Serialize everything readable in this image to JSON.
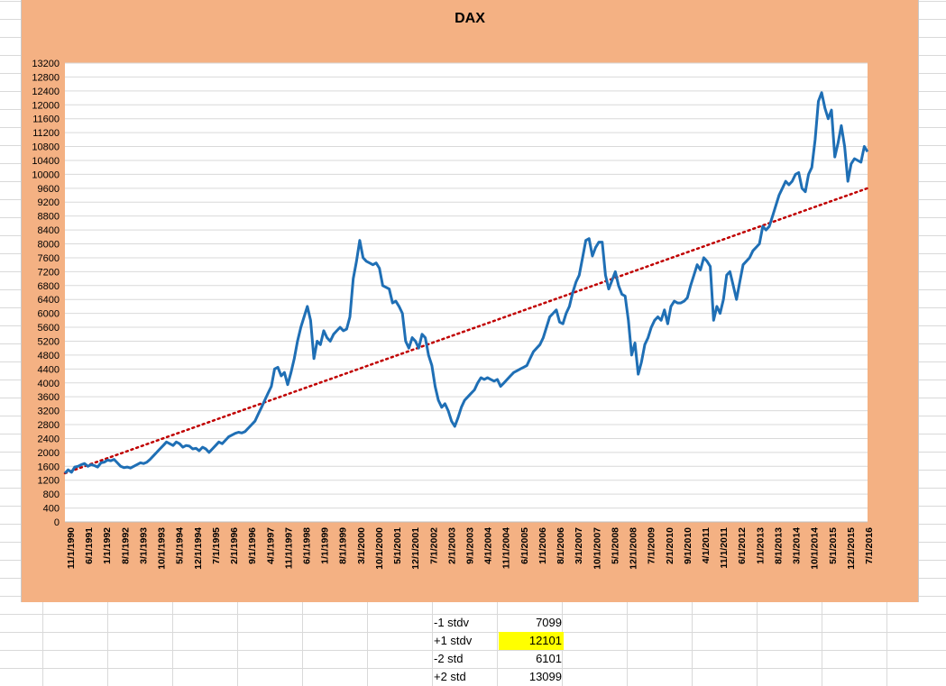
{
  "chart_data": {
    "type": "line",
    "title": "DAX",
    "ylim": [
      0,
      13200
    ],
    "y_ticks": [
      0,
      400,
      800,
      1200,
      1600,
      2000,
      2400,
      2800,
      3200,
      3600,
      4000,
      4400,
      4800,
      5200,
      5600,
      6000,
      6400,
      6800,
      7200,
      7600,
      8000,
      8400,
      8800,
      9200,
      9600,
      10000,
      10400,
      10800,
      11200,
      11600,
      12000,
      12400,
      12800,
      13200
    ],
    "x_tick_labels": [
      "11/1/1990",
      "6/1/1991",
      "1/1/1992",
      "8/1/1992",
      "3/1/1993",
      "10/1/1993",
      "5/1/1994",
      "12/1/1994",
      "7/1/1995",
      "2/1/1996",
      "9/1/1996",
      "4/1/1997",
      "11/1/1997",
      "6/1/1998",
      "1/1/1999",
      "8/1/1999",
      "3/1/2000",
      "10/1/2000",
      "5/1/2001",
      "12/1/2001",
      "7/1/2002",
      "2/1/2003",
      "9/1/2003",
      "4/1/2004",
      "11/1/2004",
      "6/1/2005",
      "1/1/2006",
      "8/1/2006",
      "3/1/2007",
      "10/1/2007",
      "5/1/2008",
      "12/1/2008",
      "7/1/2009",
      "2/1/2010",
      "9/1/2010",
      "4/1/2011",
      "11/1/2011",
      "6/1/2012",
      "1/1/2013",
      "8/1/2013",
      "3/1/2014",
      "10/1/2014",
      "5/1/2015",
      "12/1/2015",
      "7/1/2016"
    ],
    "series": [
      {
        "color": "#1f6fb5",
        "points": [
          [
            0,
            1400
          ],
          [
            1,
            1500
          ],
          [
            2,
            1430
          ],
          [
            3,
            1580
          ],
          [
            4,
            1600
          ],
          [
            5,
            1650
          ],
          [
            6,
            1680
          ],
          [
            7,
            1600
          ],
          [
            8,
            1650
          ],
          [
            9,
            1620
          ],
          [
            10,
            1580
          ],
          [
            11,
            1700
          ],
          [
            12,
            1720
          ],
          [
            13,
            1780
          ],
          [
            14,
            1760
          ],
          [
            15,
            1800
          ],
          [
            16,
            1700
          ],
          [
            17,
            1600
          ],
          [
            18,
            1560
          ],
          [
            19,
            1580
          ],
          [
            20,
            1550
          ],
          [
            21,
            1600
          ],
          [
            22,
            1650
          ],
          [
            23,
            1700
          ],
          [
            24,
            1680
          ],
          [
            25,
            1720
          ],
          [
            26,
            1800
          ],
          [
            27,
            1900
          ],
          [
            28,
            2000
          ],
          [
            29,
            2100
          ],
          [
            30,
            2200
          ],
          [
            31,
            2300
          ],
          [
            32,
            2250
          ],
          [
            33,
            2200
          ],
          [
            34,
            2300
          ],
          [
            35,
            2250
          ],
          [
            36,
            2150
          ],
          [
            37,
            2200
          ],
          [
            38,
            2180
          ],
          [
            39,
            2100
          ],
          [
            40,
            2120
          ],
          [
            41,
            2050
          ],
          [
            42,
            2150
          ],
          [
            43,
            2100
          ],
          [
            44,
            2000
          ],
          [
            45,
            2100
          ],
          [
            46,
            2200
          ],
          [
            47,
            2300
          ],
          [
            48,
            2250
          ],
          [
            49,
            2350
          ],
          [
            50,
            2450
          ],
          [
            51,
            2500
          ],
          [
            52,
            2550
          ],
          [
            53,
            2580
          ],
          [
            54,
            2560
          ],
          [
            55,
            2600
          ],
          [
            56,
            2700
          ],
          [
            57,
            2800
          ],
          [
            58,
            2900
          ],
          [
            59,
            3100
          ],
          [
            60,
            3300
          ],
          [
            61,
            3500
          ],
          [
            62,
            3700
          ],
          [
            63,
            3900
          ],
          [
            64,
            4400
          ],
          [
            65,
            4450
          ],
          [
            66,
            4200
          ],
          [
            67,
            4300
          ],
          [
            68,
            3950
          ],
          [
            69,
            4300
          ],
          [
            70,
            4700
          ],
          [
            71,
            5200
          ],
          [
            72,
            5600
          ],
          [
            73,
            5900
          ],
          [
            74,
            6200
          ],
          [
            75,
            5800
          ],
          [
            76,
            4700
          ],
          [
            77,
            5200
          ],
          [
            78,
            5100
          ],
          [
            79,
            5500
          ],
          [
            80,
            5300
          ],
          [
            81,
            5200
          ],
          [
            82,
            5400
          ],
          [
            83,
            5500
          ],
          [
            84,
            5600
          ],
          [
            85,
            5500
          ],
          [
            86,
            5550
          ],
          [
            87,
            5900
          ],
          [
            88,
            7000
          ],
          [
            89,
            7500
          ],
          [
            90,
            8100
          ],
          [
            91,
            7600
          ],
          [
            92,
            7500
          ],
          [
            93,
            7450
          ],
          [
            94,
            7400
          ],
          [
            95,
            7450
          ],
          [
            96,
            7300
          ],
          [
            97,
            6800
          ],
          [
            98,
            6750
          ],
          [
            99,
            6700
          ],
          [
            100,
            6300
          ],
          [
            101,
            6350
          ],
          [
            102,
            6200
          ],
          [
            103,
            6000
          ],
          [
            104,
            5200
          ],
          [
            105,
            5000
          ],
          [
            106,
            5300
          ],
          [
            107,
            5200
          ],
          [
            108,
            5000
          ],
          [
            109,
            5400
          ],
          [
            110,
            5300
          ],
          [
            111,
            4800
          ],
          [
            112,
            4500
          ],
          [
            113,
            3900
          ],
          [
            114,
            3500
          ],
          [
            115,
            3300
          ],
          [
            116,
            3400
          ],
          [
            117,
            3200
          ],
          [
            118,
            2900
          ],
          [
            119,
            2750
          ],
          [
            120,
            3000
          ],
          [
            121,
            3300
          ],
          [
            122,
            3500
          ],
          [
            123,
            3600
          ],
          [
            124,
            3700
          ],
          [
            125,
            3800
          ],
          [
            126,
            4000
          ],
          [
            127,
            4150
          ],
          [
            128,
            4100
          ],
          [
            129,
            4150
          ],
          [
            130,
            4100
          ],
          [
            131,
            4050
          ],
          [
            132,
            4100
          ],
          [
            133,
            3900
          ],
          [
            134,
            4000
          ],
          [
            135,
            4100
          ],
          [
            136,
            4200
          ],
          [
            137,
            4300
          ],
          [
            138,
            4350
          ],
          [
            139,
            4400
          ],
          [
            140,
            4450
          ],
          [
            141,
            4500
          ],
          [
            142,
            4700
          ],
          [
            143,
            4900
          ],
          [
            144,
            5000
          ],
          [
            145,
            5100
          ],
          [
            146,
            5300
          ],
          [
            147,
            5600
          ],
          [
            148,
            5900
          ],
          [
            149,
            6000
          ],
          [
            150,
            6100
          ],
          [
            151,
            5750
          ],
          [
            152,
            5700
          ],
          [
            153,
            6000
          ],
          [
            154,
            6200
          ],
          [
            155,
            6600
          ],
          [
            156,
            6900
          ],
          [
            157,
            7100
          ],
          [
            158,
            7600
          ],
          [
            159,
            8100
          ],
          [
            160,
            8150
          ],
          [
            161,
            7650
          ],
          [
            162,
            7900
          ],
          [
            163,
            8050
          ],
          [
            164,
            8050
          ],
          [
            165,
            7100
          ],
          [
            166,
            6700
          ],
          [
            167,
            6950
          ],
          [
            168,
            7200
          ],
          [
            169,
            6800
          ],
          [
            170,
            6550
          ],
          [
            171,
            6500
          ],
          [
            172,
            5800
          ],
          [
            173,
            4800
          ],
          [
            174,
            5150
          ],
          [
            175,
            4250
          ],
          [
            176,
            4600
          ],
          [
            177,
            5100
          ],
          [
            178,
            5300
          ],
          [
            179,
            5600
          ],
          [
            180,
            5800
          ],
          [
            181,
            5900
          ],
          [
            182,
            5800
          ],
          [
            183,
            6100
          ],
          [
            184,
            5700
          ],
          [
            185,
            6200
          ],
          [
            186,
            6350
          ],
          [
            187,
            6300
          ],
          [
            188,
            6300
          ],
          [
            189,
            6350
          ],
          [
            190,
            6450
          ],
          [
            191,
            6800
          ],
          [
            192,
            7100
          ],
          [
            193,
            7400
          ],
          [
            194,
            7250
          ],
          [
            195,
            7600
          ],
          [
            196,
            7500
          ],
          [
            197,
            7350
          ],
          [
            198,
            5800
          ],
          [
            199,
            6200
          ],
          [
            200,
            6000
          ],
          [
            201,
            6400
          ],
          [
            202,
            7100
          ],
          [
            203,
            7200
          ],
          [
            204,
            6800
          ],
          [
            205,
            6400
          ],
          [
            206,
            6900
          ],
          [
            207,
            7400
          ],
          [
            208,
            7500
          ],
          [
            209,
            7600
          ],
          [
            210,
            7800
          ],
          [
            211,
            7900
          ],
          [
            212,
            8000
          ],
          [
            213,
            8500
          ],
          [
            214,
            8400
          ],
          [
            215,
            8500
          ],
          [
            216,
            8800
          ],
          [
            217,
            9100
          ],
          [
            218,
            9400
          ],
          [
            219,
            9600
          ],
          [
            220,
            9800
          ],
          [
            221,
            9700
          ],
          [
            222,
            9800
          ],
          [
            223,
            10000
          ],
          [
            224,
            10050
          ],
          [
            225,
            9600
          ],
          [
            226,
            9500
          ],
          [
            227,
            10000
          ],
          [
            228,
            10200
          ],
          [
            229,
            11000
          ],
          [
            230,
            12100
          ],
          [
            231,
            12350
          ],
          [
            232,
            11900
          ],
          [
            233,
            11600
          ],
          [
            234,
            11850
          ],
          [
            235,
            10500
          ],
          [
            236,
            10900
          ],
          [
            237,
            11400
          ],
          [
            238,
            10800
          ],
          [
            239,
            9800
          ],
          [
            240,
            10300
          ],
          [
            241,
            10450
          ],
          [
            242,
            10400
          ],
          [
            243,
            10350
          ],
          [
            244,
            10800
          ],
          [
            245,
            10650
          ]
        ]
      }
    ],
    "trendline": {
      "type": "linear",
      "color": "#c00000",
      "style": "dotted",
      "start": [
        0,
        1400
      ],
      "end": [
        245,
        9600
      ]
    }
  },
  "stats_table": [
    {
      "label": "-1 stdv",
      "value": "7099",
      "highlight": false
    },
    {
      "label": "+1 stdv",
      "value": "12101",
      "highlight": true
    },
    {
      "label": "-2 std",
      "value": "6101",
      "highlight": false
    },
    {
      "label": "+2 std",
      "value": "13099",
      "highlight": false
    }
  ]
}
